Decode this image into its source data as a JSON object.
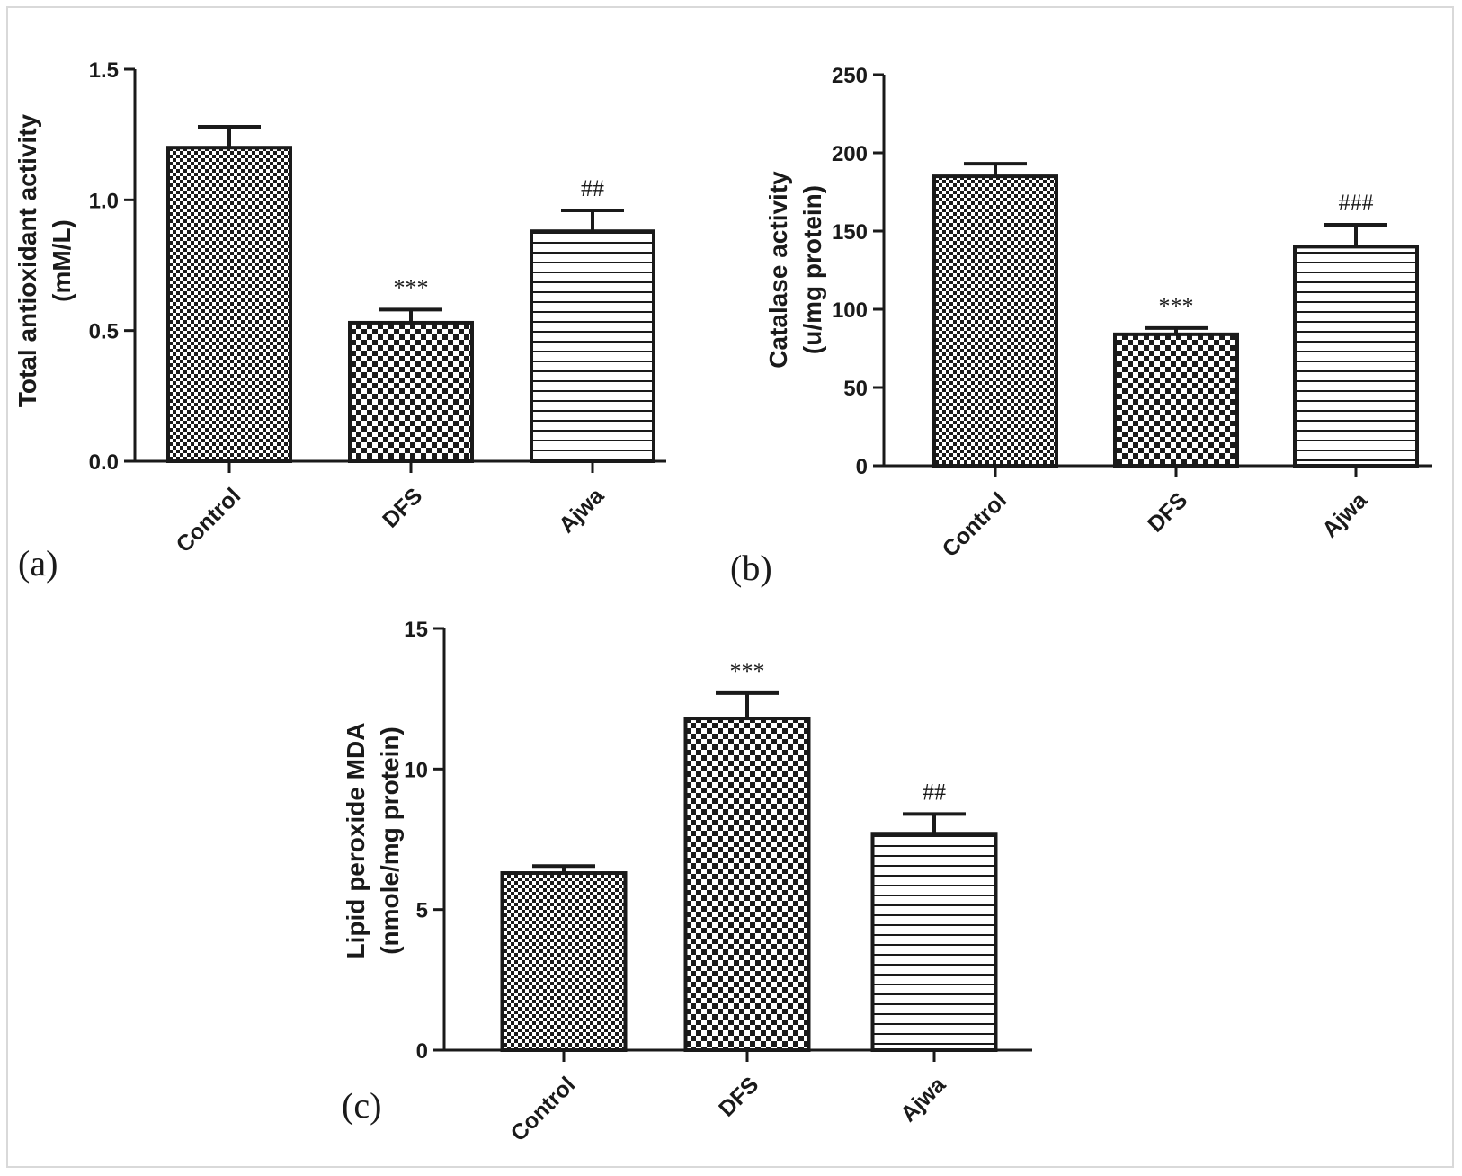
{
  "chart_data": [
    {
      "type": "bar",
      "panel_label": "(a)",
      "categories": [
        "Control",
        "DFS",
        "Ajwa"
      ],
      "values": [
        1.2,
        0.53,
        0.88
      ],
      "errors": [
        0.08,
        0.05,
        0.08
      ],
      "significance": [
        "",
        "***",
        "##"
      ],
      "ylabel_lines": [
        "Total antioxidant activity",
        "(mM/L)"
      ],
      "ylim": [
        0,
        1.5
      ],
      "yticks": [
        0.0,
        0.5,
        1.0,
        1.5
      ],
      "ytick_labels": [
        "0.0",
        "0.5",
        "1.0",
        "1.5"
      ],
      "patterns": [
        "dense-check",
        "check",
        "horizontal-lines"
      ]
    },
    {
      "type": "bar",
      "panel_label": "(b)",
      "categories": [
        "Control",
        "DFS",
        "Ajwa"
      ],
      "values": [
        185,
        84,
        140
      ],
      "errors": [
        8,
        4,
        14
      ],
      "significance": [
        "",
        "***",
        "###"
      ],
      "ylabel_lines": [
        "Catalase activity",
        "(u/mg protein)"
      ],
      "ylim": [
        0,
        250
      ],
      "yticks": [
        0,
        50,
        100,
        150,
        200,
        250
      ],
      "ytick_labels": [
        "0",
        "50",
        "100",
        "150",
        "200",
        "250"
      ],
      "patterns": [
        "dense-check",
        "check",
        "horizontal-lines"
      ]
    },
    {
      "type": "bar",
      "panel_label": "(c)",
      "categories": [
        "Control",
        "DFS",
        "Ajwa"
      ],
      "values": [
        6.3,
        11.8,
        7.7
      ],
      "errors": [
        0.25,
        0.9,
        0.7
      ],
      "significance": [
        "",
        "***",
        "##"
      ],
      "ylabel_lines": [
        "Lipid peroxide MDA",
        "(nmole/mg protein)"
      ],
      "ylim": [
        0,
        15
      ],
      "yticks": [
        0,
        5,
        10,
        15
      ],
      "ytick_labels": [
        "0",
        "5",
        "10",
        "15"
      ],
      "patterns": [
        "dense-check",
        "check",
        "horizontal-lines"
      ]
    }
  ],
  "colors": {
    "ink": "#1a1a1a",
    "fill": "#ffffff",
    "border": "#d9d9d9"
  }
}
